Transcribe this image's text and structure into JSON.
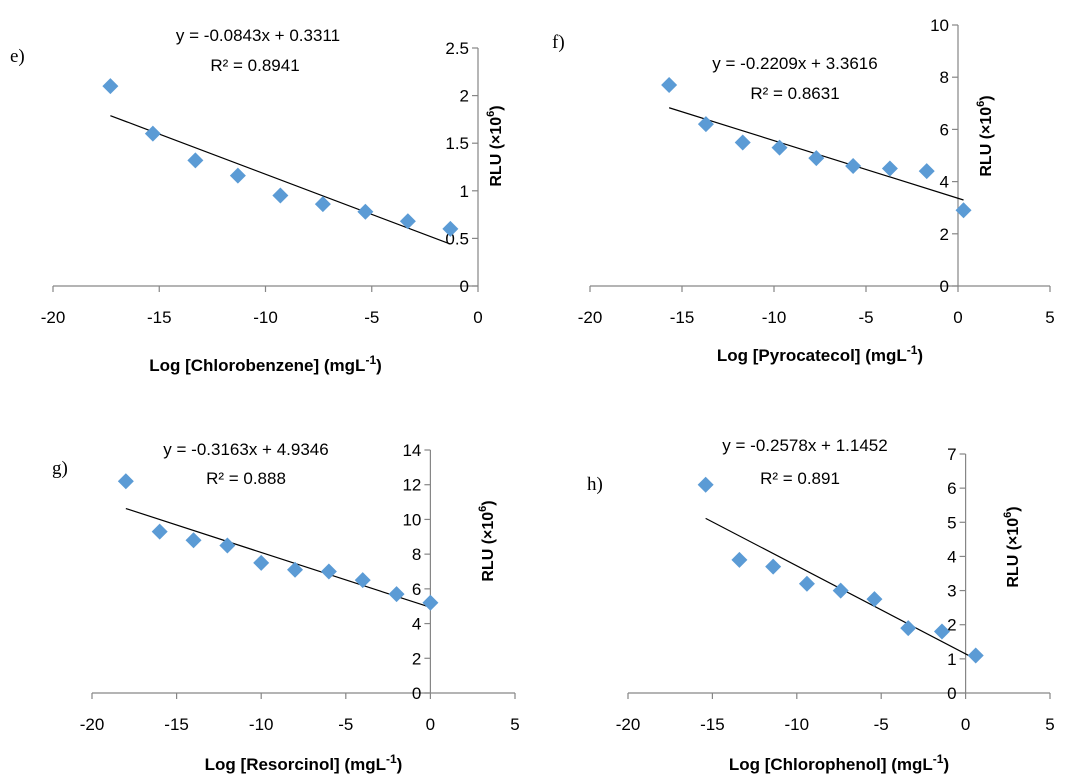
{
  "colors": {
    "marker": "#5b9bd5",
    "axis": "#868686",
    "trendline": "#000000"
  },
  "chart_data": [
    {
      "type": "scatter",
      "panel_label": "e)",
      "xlabel": "Log [Chlorobenzene] (mgL",
      "xlabel_sup": "-1",
      "xlabel_end": ")",
      "ylabel": "RLU (×10",
      "ylabel_sup": "6",
      "ylabel_end": ")",
      "xlim": [
        -20,
        0
      ],
      "ylim": [
        0,
        2.5
      ],
      "xticks": [
        -20,
        -15,
        -10,
        -5,
        0
      ],
      "yticks": [
        0,
        0.5,
        1,
        1.5,
        2,
        2.5
      ],
      "xtick_labels": [
        "-20",
        "-15",
        "-10",
        "-5",
        "0"
      ],
      "ytick_labels": [
        "0",
        "0.5",
        "1",
        "1.5",
        "2",
        "2.5"
      ],
      "x": [
        -17.3,
        -15.3,
        -13.3,
        -11.3,
        -9.3,
        -7.3,
        -5.3,
        -3.3,
        -1.3
      ],
      "y": [
        2.1,
        1.6,
        1.32,
        1.16,
        0.95,
        0.86,
        0.78,
        0.68,
        0.6
      ],
      "trendline": {
        "slope": -0.0843,
        "intercept": 0.3311,
        "x_range": [
          -17.3,
          -1.3
        ]
      },
      "equation": "y = -0.0843x + 0.3311",
      "r2": "R² = 0.8941"
    },
    {
      "type": "scatter",
      "panel_label": "f)",
      "xlabel": "Log [Pyrocatecol] (mgL",
      "xlabel_sup": "-1",
      "xlabel_end": ")",
      "ylabel": "RLU (×10",
      "ylabel_sup": "6",
      "ylabel_end": ")",
      "xlim": [
        -20,
        5
      ],
      "ylim": [
        0,
        10
      ],
      "xticks": [
        -20,
        -15,
        -10,
        -5,
        0,
        5
      ],
      "yticks": [
        0,
        2,
        4,
        6,
        8,
        10
      ],
      "xtick_labels": [
        "-20",
        "-15",
        "-10",
        "-5",
        "0",
        "5"
      ],
      "ytick_labels": [
        "0",
        "2",
        "4",
        "6",
        "8",
        "10"
      ],
      "x": [
        -15.7,
        -13.7,
        -11.7,
        -9.7,
        -7.7,
        -5.7,
        -3.7,
        -1.7,
        0.3
      ],
      "y": [
        7.7,
        6.2,
        5.5,
        5.3,
        4.9,
        4.6,
        4.5,
        4.4,
        2.9
      ],
      "trendline": {
        "slope": -0.2209,
        "intercept": 3.3616,
        "x_range": [
          -15.7,
          0.3
        ]
      },
      "equation": "y = -0.2209x + 3.3616",
      "r2": "R² = 0.8631"
    },
    {
      "type": "scatter",
      "panel_label": "g)",
      "xlabel": "Log [Resorcinol] (mgL",
      "xlabel_sup": "-1",
      "xlabel_end": ")",
      "ylabel": "RLU (×10",
      "ylabel_sup": "6",
      "ylabel_end": ")",
      "xlim": [
        -20,
        5
      ],
      "ylim": [
        0,
        14
      ],
      "xticks": [
        -20,
        -15,
        -10,
        -5,
        0,
        5
      ],
      "yticks": [
        0,
        2,
        4,
        6,
        8,
        10,
        12,
        14
      ],
      "xtick_labels": [
        "-20",
        "-15",
        "-10",
        "-5",
        "0",
        "5"
      ],
      "ytick_labels": [
        "0",
        "2",
        "4",
        "6",
        "8",
        "10",
        "12",
        "14"
      ],
      "x": [
        -18,
        -16,
        -14,
        -12,
        -10,
        -8,
        -6,
        -4,
        -2,
        0
      ],
      "y": [
        12.2,
        9.3,
        8.8,
        8.5,
        7.5,
        7.1,
        7.0,
        6.5,
        5.7,
        5.2
      ],
      "trendline": {
        "slope": -0.3163,
        "intercept": 4.9346,
        "x_range": [
          -18,
          0
        ]
      },
      "equation": "y = -0.3163x + 4.9346",
      "r2": "R² = 0.888"
    },
    {
      "type": "scatter",
      "panel_label": "h)",
      "xlabel": "Log [Chlorophenol] (mgL",
      "xlabel_sup": "-1",
      "xlabel_end": ")",
      "ylabel": "RLU (×10",
      "ylabel_sup": "6",
      "ylabel_end": ")",
      "xlim": [
        -20,
        5
      ],
      "ylim": [
        0,
        7
      ],
      "xticks": [
        -20,
        -15,
        -10,
        -5,
        0,
        5
      ],
      "yticks": [
        0,
        1,
        2,
        3,
        4,
        5,
        6,
        7
      ],
      "xtick_labels": [
        "-20",
        "-15",
        "-10",
        "-5",
        "0",
        "5"
      ],
      "ytick_labels": [
        "0",
        "1",
        "2",
        "3",
        "4",
        "5",
        "6",
        "7"
      ],
      "x": [
        -15.4,
        -13.4,
        -11.4,
        -9.4,
        -7.4,
        -5.4,
        -3.4,
        -1.4,
        0.6
      ],
      "y": [
        6.1,
        3.9,
        3.7,
        3.2,
        3.0,
        2.75,
        1.9,
        1.8,
        1.1
      ],
      "trendline": {
        "slope": -0.2578,
        "intercept": 1.1452,
        "x_range": [
          -15.4,
          0.6
        ]
      },
      "equation": "y = -0.2578x + 1.1452",
      "r2": "R² = 0.891"
    }
  ]
}
